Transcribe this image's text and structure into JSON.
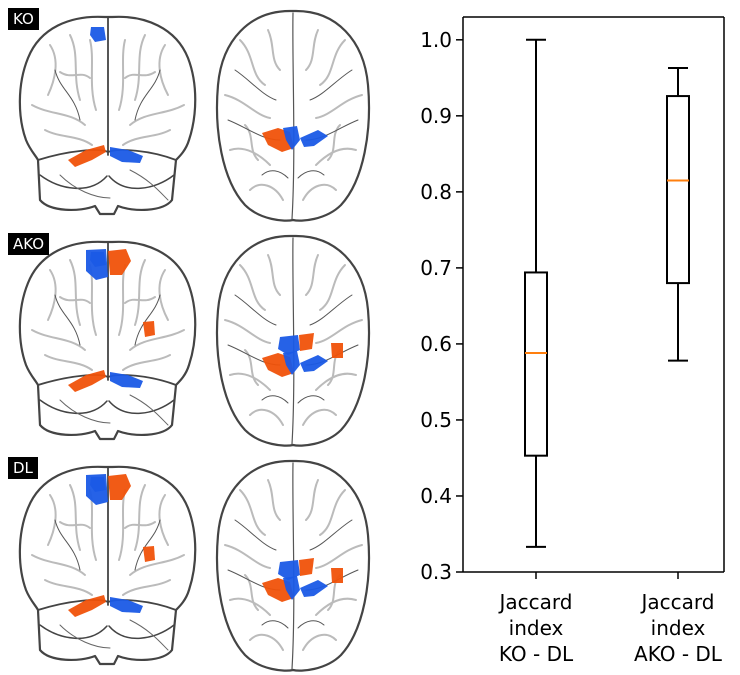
{
  "panels": [
    {
      "label": "KO"
    },
    {
      "label": "AKO"
    },
    {
      "label": "DL"
    }
  ],
  "colors": {
    "blue_cluster": "#1a5ae6",
    "orange_cluster": "#f0520a",
    "median": "#ff7f0e",
    "outline": "#444444",
    "sulci": "#bbbbbb"
  },
  "chart_data": {
    "type": "box",
    "title": "",
    "ylabel": "",
    "ylim": [
      0.3,
      1.03
    ],
    "yticks": [
      "0.3",
      "0.4",
      "0.5",
      "0.6",
      "0.7",
      "0.8",
      "0.9",
      "1.0"
    ],
    "categories": [
      {
        "lines": [
          "Jaccard",
          "index",
          "KO - DL"
        ]
      },
      {
        "lines": [
          "Jaccard",
          "index",
          "AKO - DL"
        ]
      }
    ],
    "boxes": [
      {
        "whisker_low": 0.333,
        "q1": 0.453,
        "median": 0.588,
        "q3": 0.694,
        "whisker_high": 1.0
      },
      {
        "whisker_low": 0.578,
        "q1": 0.68,
        "median": 0.815,
        "q3": 0.926,
        "whisker_high": 0.963
      }
    ]
  }
}
